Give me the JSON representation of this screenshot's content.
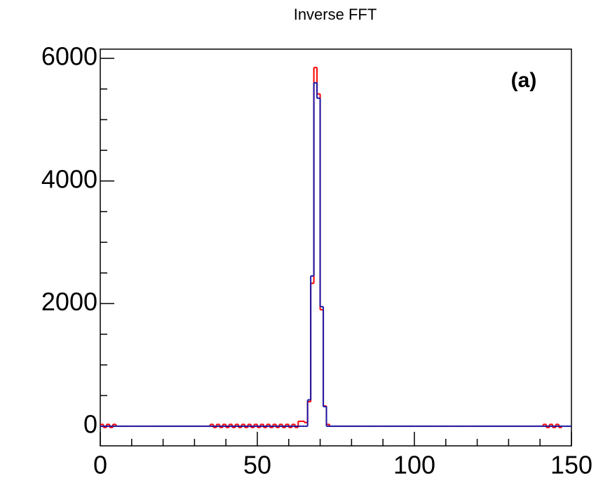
{
  "chart_data": {
    "type": "histogram",
    "title": "Inverse FFT",
    "annotation": "(a)",
    "bins": [
      0,
      1,
      2,
      3,
      4,
      5,
      6,
      7,
      8,
      9,
      10,
      11,
      12,
      13,
      14,
      15,
      16,
      17,
      18,
      19,
      20,
      21,
      22,
      23,
      24,
      25,
      26,
      27,
      28,
      29,
      30,
      31,
      32,
      33,
      34,
      35,
      36,
      37,
      38,
      39,
      40,
      41,
      42,
      43,
      44,
      45,
      46,
      47,
      48,
      49,
      50,
      51,
      52,
      53,
      54,
      55,
      56,
      57,
      58,
      59,
      60,
      61,
      62,
      63,
      64,
      65,
      66,
      67,
      68,
      69,
      70,
      71,
      72,
      73,
      74,
      75,
      76,
      77,
      78,
      79,
      80,
      81,
      82,
      83,
      84,
      85,
      86,
      87,
      88,
      89,
      90,
      91,
      92,
      93,
      94,
      95,
      96,
      97,
      98,
      99,
      100,
      101,
      102,
      103,
      104,
      105,
      106,
      107,
      108,
      109,
      110,
      111,
      112,
      113,
      114,
      115,
      116,
      117,
      118,
      119,
      120,
      121,
      122,
      123,
      124,
      125,
      126,
      127,
      128,
      129,
      130,
      131,
      132,
      133,
      134,
      135,
      136,
      137,
      138,
      139,
      140,
      141,
      142,
      143,
      144,
      145,
      146,
      147,
      148,
      149,
      150
    ],
    "series": [
      {
        "color": "#ff0000",
        "values": [
          30,
          -20,
          30,
          -20,
          30,
          0,
          0,
          0,
          0,
          0,
          0,
          0,
          0,
          0,
          0,
          0,
          0,
          0,
          0,
          0,
          0,
          0,
          0,
          0,
          0,
          0,
          0,
          0,
          0,
          0,
          0,
          0,
          0,
          0,
          0,
          30,
          -20,
          30,
          -20,
          30,
          -20,
          30,
          -20,
          30,
          -20,
          30,
          -20,
          30,
          -20,
          30,
          -20,
          30,
          -20,
          30,
          -20,
          30,
          -20,
          30,
          -20,
          30,
          -20,
          30,
          -20,
          80,
          80,
          60,
          400,
          2330,
          5850,
          5420,
          1900,
          330,
          30,
          0,
          0,
          0,
          0,
          0,
          0,
          0,
          0,
          0,
          0,
          0,
          0,
          0,
          0,
          0,
          0,
          0,
          0,
          0,
          0,
          0,
          0,
          0,
          0,
          0,
          0,
          0,
          0,
          0,
          0,
          0,
          0,
          0,
          0,
          0,
          0,
          0,
          0,
          0,
          0,
          0,
          0,
          0,
          0,
          0,
          0,
          0,
          0,
          0,
          0,
          0,
          0,
          0,
          0,
          0,
          0,
          0,
          0,
          0,
          0,
          0,
          0,
          0,
          0,
          0,
          0,
          0,
          0,
          30,
          -20,
          30,
          -20,
          30,
          -20
        ]
      },
      {
        "color": "#1a1aa8",
        "values": [
          0,
          0,
          0,
          0,
          0,
          0,
          0,
          0,
          0,
          0,
          0,
          0,
          0,
          0,
          0,
          0,
          0,
          0,
          0,
          0,
          0,
          0,
          0,
          0,
          0,
          0,
          0,
          0,
          0,
          0,
          0,
          0,
          0,
          0,
          0,
          0,
          0,
          0,
          0,
          0,
          0,
          0,
          0,
          0,
          0,
          0,
          0,
          0,
          0,
          0,
          0,
          0,
          0,
          0,
          0,
          0,
          0,
          0,
          0,
          0,
          0,
          0,
          0,
          0,
          0,
          0,
          430,
          2450,
          5600,
          5350,
          1950,
          320,
          0,
          0,
          0,
          0,
          0,
          0,
          0,
          0,
          0,
          0,
          0,
          0,
          0,
          0,
          0,
          0,
          0,
          0,
          0,
          0,
          0,
          0,
          0,
          0,
          0,
          0,
          0,
          0,
          0,
          0,
          0,
          0,
          0,
          0,
          0,
          0,
          0,
          0,
          0,
          0,
          0,
          0,
          0,
          0,
          0,
          0,
          0,
          0,
          0,
          0,
          0,
          0,
          0,
          0,
          0,
          0,
          0,
          0,
          0,
          0,
          0,
          0,
          0,
          0,
          0,
          0,
          0,
          0,
          0,
          0,
          0,
          0,
          0,
          0,
          0,
          0,
          0,
          0
        ]
      }
    ],
    "xlim": [
      0,
      150
    ],
    "xticks": [
      0,
      50,
      100,
      150
    ],
    "xminorticks": [
      10,
      20,
      30,
      40,
      60,
      70,
      80,
      90,
      110,
      120,
      130,
      140
    ],
    "ylim": [
      -320,
      6150
    ],
    "yticks": [
      0,
      2000,
      4000,
      6000
    ],
    "yminorticks": [
      500,
      1000,
      1500,
      2500,
      3000,
      3500,
      4500,
      5000,
      5500
    ]
  }
}
